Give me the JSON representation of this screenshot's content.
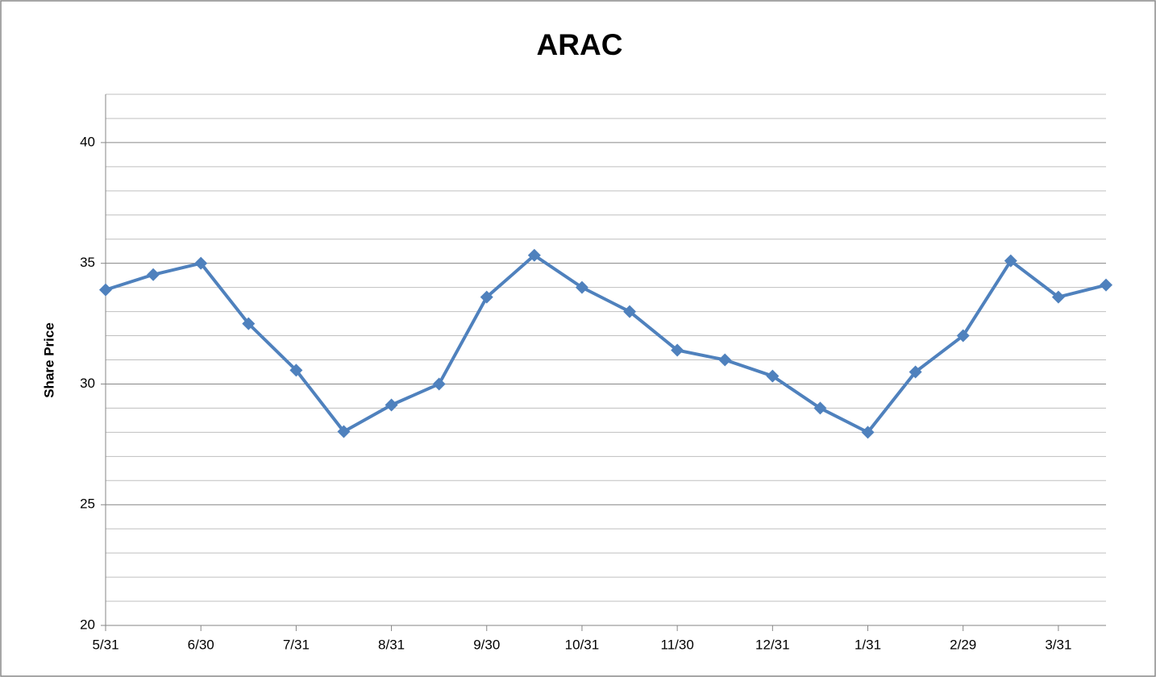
{
  "chart_data": {
    "type": "line",
    "title": "ARAC",
    "y_label": "Share Price",
    "categories": [
      "5/31",
      null,
      "6/30",
      null,
      "7/31",
      null,
      "8/31",
      null,
      "9/30",
      null,
      "10/31",
      null,
      "11/30",
      null,
      "12/31",
      null,
      "1/31",
      null,
      "2/29",
      null,
      "3/31",
      null
    ],
    "series": [
      {
        "name": "ARAC",
        "color": "#4f81bd",
        "values": [
          33.9,
          34.53,
          35.0,
          32.5,
          30.57,
          28.03,
          29.13,
          30.0,
          33.6,
          35.33,
          34.0,
          33.0,
          31.4,
          31.0,
          30.33,
          29.0,
          28.0,
          30.5,
          32.0,
          35.1,
          33.6,
          34.1
        ]
      }
    ],
    "ylim": [
      20,
      42
    ],
    "yticks": [
      20,
      25,
      30,
      35,
      40
    ],
    "minor_yticks": [
      21,
      22,
      23,
      24,
      26,
      27,
      28,
      29,
      31,
      32,
      33,
      34,
      36,
      37,
      38,
      39,
      41,
      42
    ],
    "grid": true,
    "legend": false
  }
}
